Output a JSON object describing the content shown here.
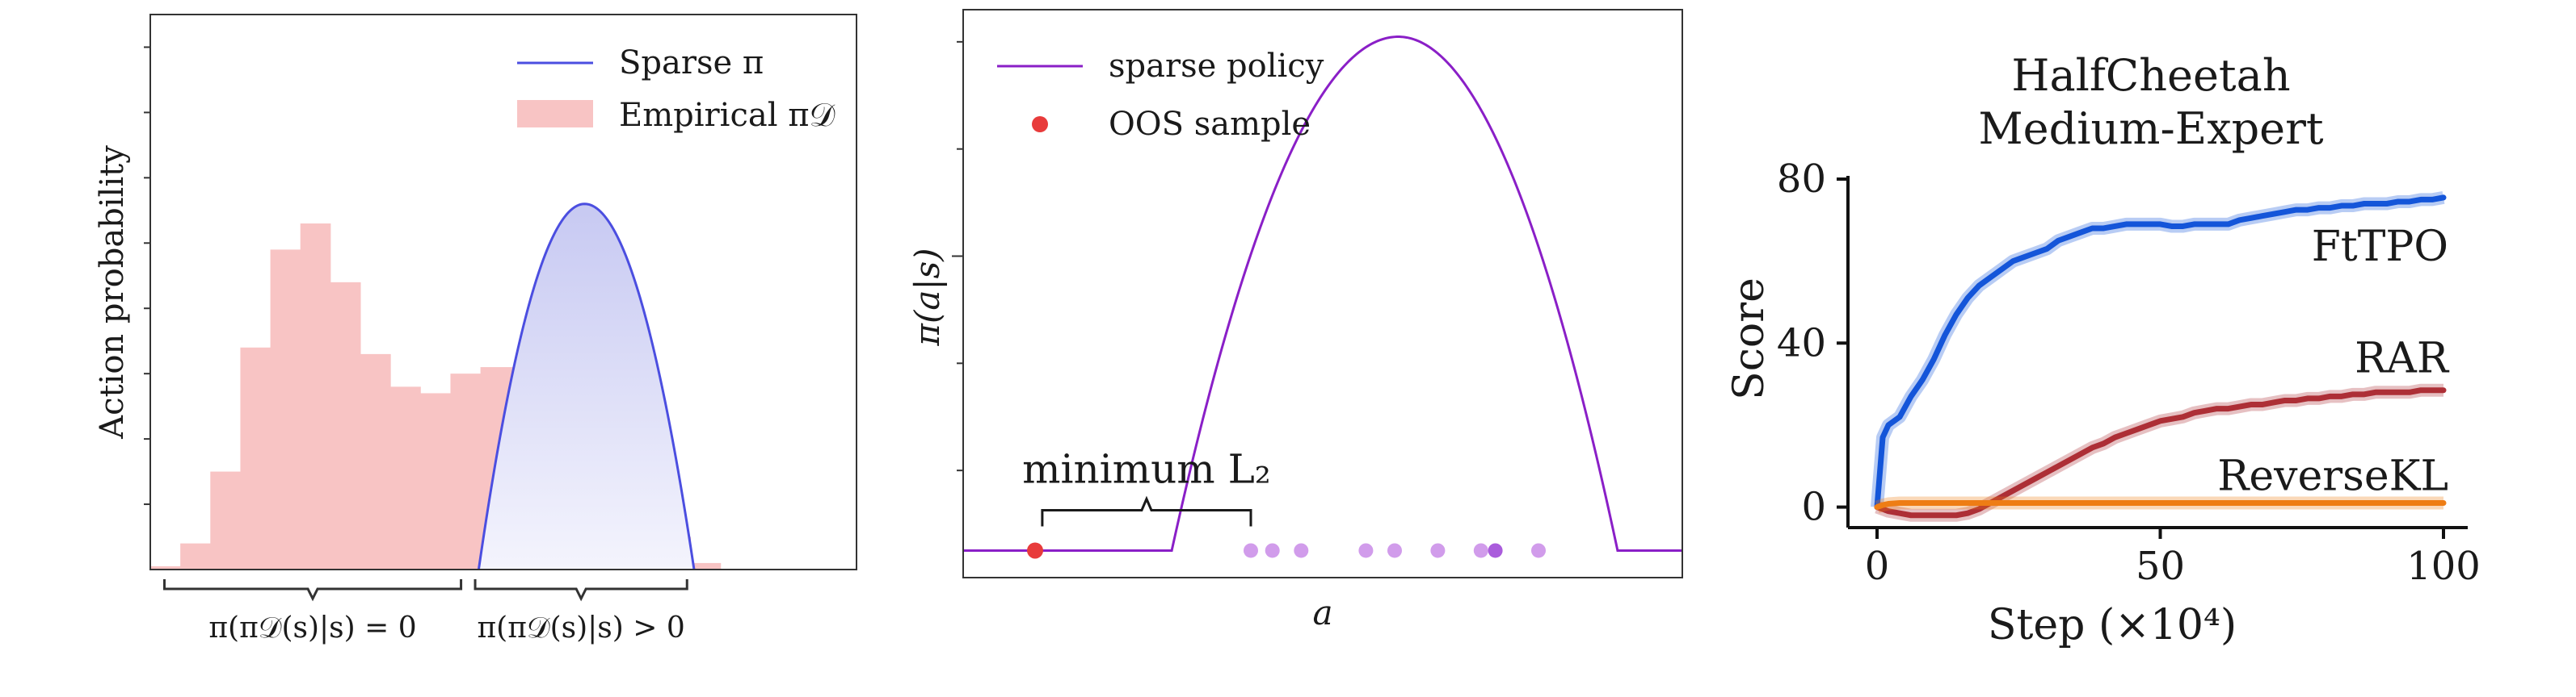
{
  "chart_data": [
    {
      "type": "bar",
      "ylabel": "Action probability",
      "legend": {
        "placement": "top-right",
        "entries": [
          {
            "label": "Sparse π",
            "kind": "line",
            "color": "#4b4ee0"
          },
          {
            "label": "Empirical π𝒟",
            "kind": "patch",
            "color": "#f8c4c4"
          }
        ]
      },
      "histogram": {
        "name": "Empirical π𝒟",
        "x_range": [
          0,
          1
        ],
        "values": [
          0.005,
          0.04,
          0.15,
          0.34,
          0.49,
          0.53,
          0.44,
          0.33,
          0.28,
          0.27,
          0.3,
          0.31,
          0.31,
          0.34,
          0.26,
          0.2,
          0.11,
          0.05,
          0.01,
          0.0
        ]
      },
      "sparse_curve": {
        "name": "Sparse π",
        "support": [
          0.465,
          0.77
        ],
        "peak_x": 0.615,
        "peak_y": 0.56
      },
      "ylim": [
        0,
        0.85
      ],
      "annotations": [
        {
          "text": "π(π𝒟(s)|s) = 0",
          "span": [
            0.02,
            0.44
          ]
        },
        {
          "text": "π(π𝒟(s)|s) > 0",
          "span": [
            0.46,
            0.76
          ]
        }
      ],
      "colors": {
        "hist": "#f8c4c4",
        "curve": "#4b4ee0"
      }
    },
    {
      "type": "line",
      "xlabel": "a",
      "ylabel": "π(a|s)",
      "legend": {
        "placement": "top-left",
        "entries": [
          {
            "label": "sparse policy",
            "kind": "line",
            "color": "#8a1fc7"
          },
          {
            "label": "OOS sample",
            "kind": "dot",
            "color": "#e83b3b"
          }
        ]
      },
      "curve": {
        "name": "sparse policy",
        "baseline": 0.05,
        "support": [
          0.29,
          0.91
        ],
        "peak_x": 0.605,
        "peak_y": 1.0
      },
      "samples": {
        "oos": [
          0.1
        ],
        "in_support": [
          0.4,
          0.43,
          0.47,
          0.56,
          0.6,
          0.66,
          0.72,
          0.74,
          0.8
        ],
        "highlight_index": 7
      },
      "ylim": [
        0,
        1.05
      ],
      "annotations": [
        {
          "text": "minimum L₂",
          "span": [
            0.11,
            0.4
          ]
        }
      ],
      "colors": {
        "curve": "#8a1fc7",
        "oos": "#e83b3b",
        "samples": "#c98be8",
        "highlight": "#9b3fd6"
      }
    },
    {
      "type": "line",
      "title": "HalfCheetah\nMedium-Expert",
      "title_lines": [
        "HalfCheetah",
        "Medium-Expert"
      ],
      "xlabel": "Step (×10⁴)",
      "ylabel": "Score",
      "xlim": [
        0,
        100
      ],
      "ylim": [
        -5,
        80
      ],
      "xticks": [
        0,
        50,
        100
      ],
      "yticks": [
        0,
        40,
        80
      ],
      "x": [
        0,
        1,
        2,
        4,
        6,
        8,
        10,
        12,
        14,
        16,
        18,
        20,
        22,
        24,
        26,
        28,
        30,
        32,
        34,
        36,
        38,
        40,
        42,
        44,
        46,
        48,
        50,
        52,
        54,
        56,
        58,
        60,
        62,
        64,
        66,
        68,
        70,
        72,
        74,
        76,
        78,
        80,
        82,
        84,
        86,
        88,
        90,
        92,
        94,
        96,
        98,
        100
      ],
      "series": [
        {
          "name": "FtTPO",
          "color": "#1455d9",
          "values": [
            0,
            17,
            20,
            22,
            27,
            31,
            36,
            42,
            47,
            51,
            54,
            56,
            58,
            60,
            61,
            62,
            63,
            65,
            66,
            67,
            68,
            68,
            68.5,
            69,
            69,
            69,
            69,
            68.5,
            68.5,
            69,
            69,
            69,
            69,
            70,
            70.5,
            71,
            71.5,
            72,
            72.5,
            72.5,
            73,
            73,
            73.5,
            73.5,
            74,
            74,
            74,
            74.5,
            74.5,
            75,
            75,
            75.5
          ]
        },
        {
          "name": "RAR",
          "color": "#ad2f36",
          "values": [
            0,
            -0.5,
            -1,
            -1.5,
            -2,
            -2,
            -2,
            -2,
            -2,
            -1.5,
            -0.5,
            1,
            2.5,
            4,
            5.5,
            7,
            8.5,
            10,
            11.5,
            13,
            14.5,
            15.5,
            17,
            18,
            19,
            20,
            21,
            21.5,
            22,
            23,
            23.5,
            24,
            24,
            24.5,
            25,
            25,
            25.5,
            26,
            26,
            26.5,
            26.5,
            27,
            27,
            27.5,
            27.5,
            28,
            28,
            28,
            28,
            28.5,
            28.5,
            28.5
          ]
        },
        {
          "name": "ReverseKL",
          "color": "#ee7d14",
          "values": [
            0,
            0.5,
            0.8,
            1,
            1,
            1,
            1,
            1,
            1,
            1,
            1,
            1,
            1,
            1,
            1,
            1,
            1,
            1,
            1,
            1,
            1,
            1,
            1,
            1,
            1,
            1,
            1,
            1,
            1,
            1,
            1,
            1,
            1,
            1,
            1,
            1,
            1,
            1,
            1,
            1,
            1,
            1,
            1,
            1,
            1,
            1,
            1,
            1,
            1,
            1,
            1,
            1
          ]
        }
      ],
      "label_placement": "inline-right"
    }
  ]
}
